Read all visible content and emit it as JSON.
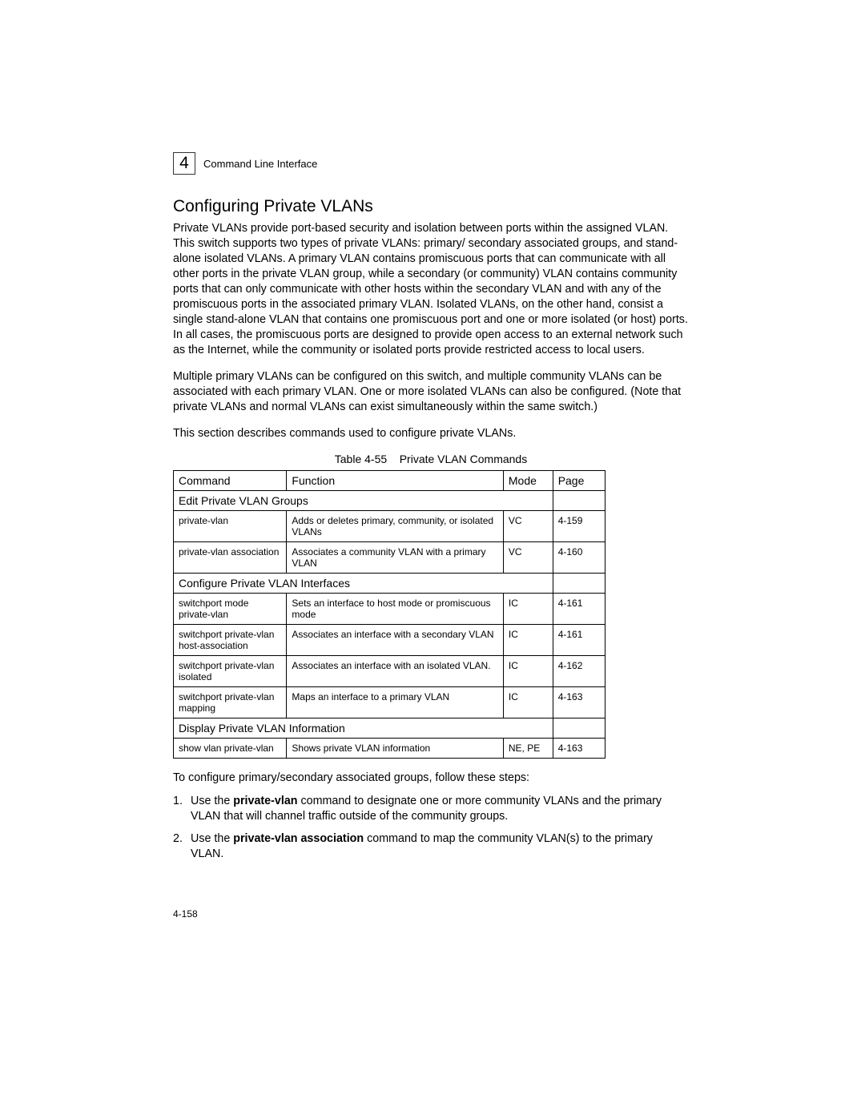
{
  "chapter": {
    "number": "4",
    "label": "Command Line Interface"
  },
  "section": {
    "title": "Configuring Private VLANs",
    "para1": "Private VLANs provide port-based security and isolation between ports within the assigned VLAN. This switch supports two types of private VLANs: primary/ secondary associated groups, and stand-alone isolated VLANs. A primary VLAN contains promiscuous ports that can communicate with all other ports in the private VLAN group, while a secondary (or  community) VLAN contains community ports that can only communicate with other hosts within the secondary VLAN and with any of  the promiscuous ports in the associated primary VLAN. Isolated VLANs, on the other hand, consist a single stand-alone VLAN that contains one promiscuous port and one or more isolated (or host) ports. In all cases, the promiscuous ports are designed to provide open access to an external network such as the Internet, while the community or isolated ports provide restricted access to local users.",
    "para2": "Multiple primary VLANs can be configured on this switch, and multiple community VLANs can be associated with each primary VLAN. One or more isolated VLANs can also be configured. (Note that private VLANs and normal VLANs can exist simultaneously within the same switch.)",
    "para3": "This section describes commands used to configure private VLANs."
  },
  "table": {
    "caption_prefix": "Table 4-55",
    "caption_title": "Private VLAN Commands",
    "headers": {
      "command": "Command",
      "function": "Function",
      "mode": "Mode",
      "page": "Page"
    },
    "groups": [
      {
        "label": "Edit Private VLAN Groups",
        "rows": [
          {
            "command": "private-vlan",
            "function": "Adds or deletes primary, community, or isolated VLANs",
            "mode": "VC",
            "page": "4-159"
          },
          {
            "command": "private-vlan association",
            "function": "Associates a community VLAN with a primary VLAN",
            "mode": "VC",
            "page": "4-160"
          }
        ]
      },
      {
        "label": "Configure Private VLAN Interfaces",
        "rows": [
          {
            "command": "switchport mode private-vlan",
            "function": "Sets an interface to host mode or promiscuous mode",
            "mode": "IC",
            "page": "4-161"
          },
          {
            "command": "switchport private-vlan host-association",
            "function": "Associates an interface with a secondary VLAN",
            "mode": "IC",
            "page": "4-161"
          },
          {
            "command": "switchport private-vlan isolated",
            "function": "Associates an interface with an isolated VLAN.",
            "mode": "IC",
            "page": "4-162"
          },
          {
            "command": "switchport private-vlan mapping",
            "function": "Maps an interface to a primary VLAN",
            "mode": "IC",
            "page": "4-163"
          }
        ]
      },
      {
        "label": "Display Private VLAN Information",
        "rows": [
          {
            "command": "show vlan private-vlan",
            "function": "Shows private VLAN information",
            "mode": "NE, PE",
            "page": "4-163"
          }
        ]
      }
    ]
  },
  "steps": {
    "intro": "To configure primary/secondary associated groups, follow these steps:",
    "items": [
      {
        "num": "1.",
        "pre": "Use the ",
        "bold": "private-vlan",
        "post": " command to designate one or more community VLANs and the primary VLAN that will channel traffic outside of the community groups."
      },
      {
        "num": "2.",
        "pre": "Use the ",
        "bold": "private-vlan association",
        "post": " command to map the community VLAN(s) to the primary VLAN."
      }
    ]
  },
  "footer": {
    "page_number": "4-158"
  }
}
